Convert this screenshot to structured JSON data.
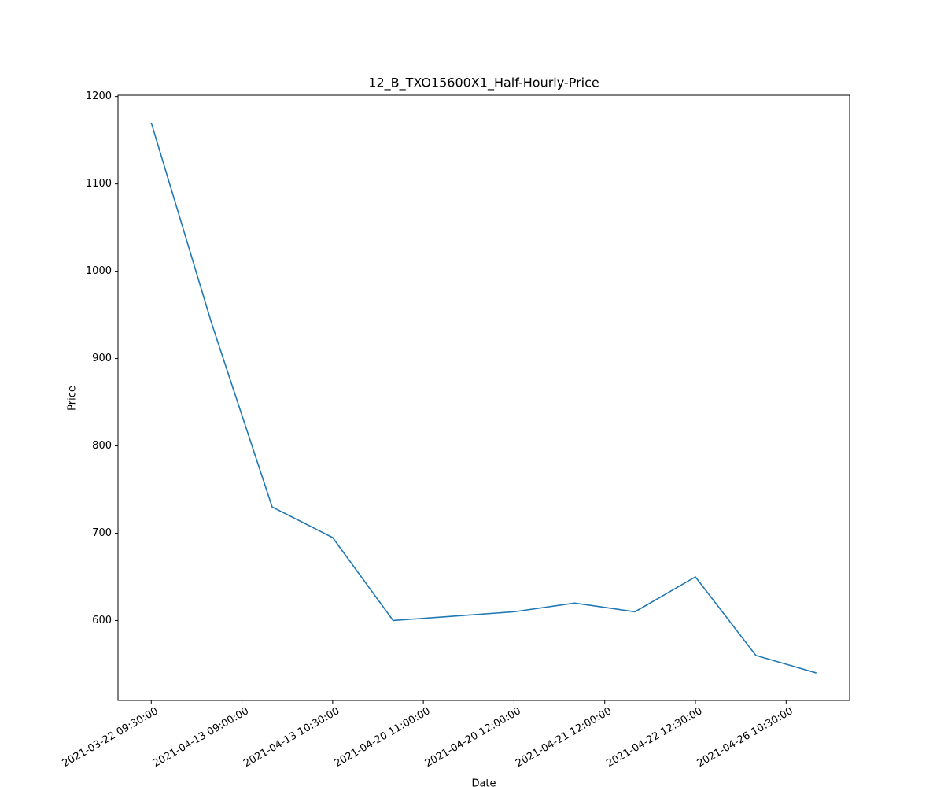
{
  "chart_data": {
    "type": "line",
    "title": "12_B_TXO15600X1_Half-Hourly-Price",
    "x_label": "Date",
    "y_label": "Price",
    "x": [
      0,
      1,
      2,
      3,
      4,
      5,
      6,
      7,
      8,
      9,
      10,
      11
    ],
    "series": [
      {
        "name": "Price",
        "color": "#1f77b4",
        "values": [
          1170,
          940,
          730,
          695,
          600,
          605,
          610,
          620,
          610,
          650,
          560,
          540
        ]
      }
    ],
    "xlim": [
      -0.55,
      11.55
    ],
    "xticks": [
      {
        "value": 0,
        "label": "2021-03-22 09:30:00"
      },
      {
        "value": 1.5,
        "label": "2021-04-13 09:00:00"
      },
      {
        "value": 3,
        "label": "2021-04-13 10:30:00"
      },
      {
        "value": 4.5,
        "label": "2021-04-20 11:00:00"
      },
      {
        "value": 6,
        "label": "2021-04-20 12:00:00"
      },
      {
        "value": 7.5,
        "label": "2021-04-21 12:00:00"
      },
      {
        "value": 9,
        "label": "2021-04-22 12:30:00"
      },
      {
        "value": 10.5,
        "label": "2021-04-26 10:30:00"
      }
    ],
    "ylim": [
      508.5,
      1201.5
    ],
    "yticks": [
      600,
      700,
      800,
      900,
      1000,
      1100,
      1200
    ],
    "grid": false
  }
}
